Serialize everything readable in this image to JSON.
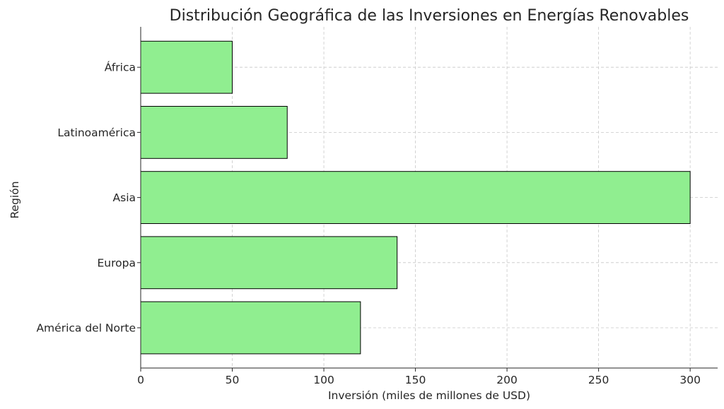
{
  "chart_data": {
    "type": "bar",
    "orientation": "horizontal",
    "title": "Distribución Geográfica de las Inversiones en Energías Renovables",
    "xlabel": "Inversión (miles de millones de USD)",
    "ylabel": "Región",
    "categories": [
      "América del Norte",
      "Europa",
      "Asia",
      "Latinoamérica",
      "África"
    ],
    "values": [
      120,
      140,
      300,
      80,
      50
    ],
    "xlim": [
      0,
      315
    ],
    "xticks": [
      0,
      50,
      100,
      150,
      200,
      250,
      300
    ],
    "grid": true,
    "bar_color": "#90EE90",
    "bar_edge_color": "#000000"
  }
}
